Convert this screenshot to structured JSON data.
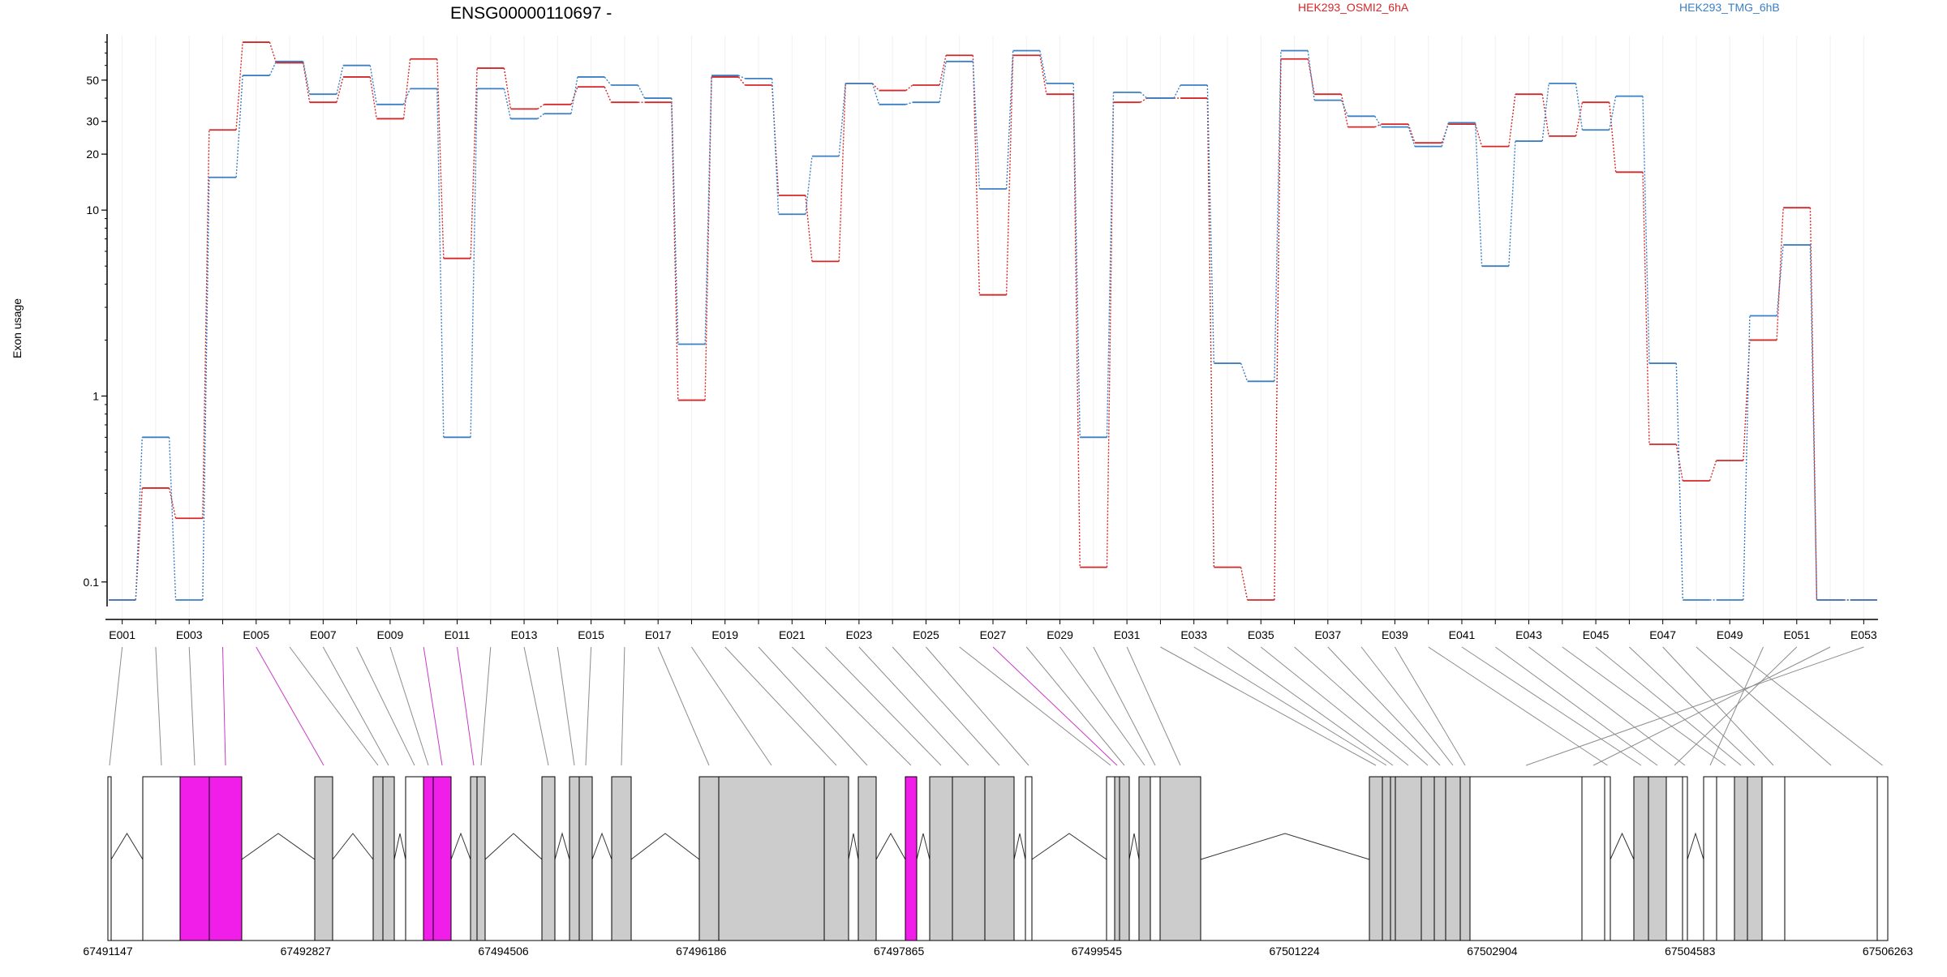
{
  "chart_data": {
    "type": "line",
    "title": "ENSG00000110697 -",
    "ylabel": "Exon usage",
    "xlabel": "",
    "yscale": "log",
    "y_tick_values": [
      0.1,
      1,
      10,
      20,
      30,
      50
    ],
    "y_tick_labels": [
      "0.1",
      "1",
      "10",
      "20",
      "30",
      "50"
    ],
    "grid": "vertical, light",
    "legend_position": "top, horizontal",
    "exons": [
      "E001",
      "E002",
      "E003",
      "E004",
      "E005",
      "E006",
      "E007",
      "E008",
      "E009",
      "E010",
      "E011",
      "E012",
      "E013",
      "E014",
      "E015",
      "E016",
      "E017",
      "E018",
      "E019",
      "E020",
      "E021",
      "E022",
      "E023",
      "E024",
      "E025",
      "E026",
      "E027",
      "E028",
      "E029",
      "E030",
      "E031",
      "E032",
      "E033",
      "E034",
      "E035",
      "E036",
      "E037",
      "E038",
      "E039",
      "E040",
      "E041",
      "E042",
      "E043",
      "E044",
      "E045",
      "E046",
      "E047",
      "E048",
      "E049",
      "E050",
      "E051",
      "E052",
      "E053"
    ],
    "exon_tick_labels": [
      "E001",
      "E003",
      "E005",
      "E007",
      "E009",
      "E011",
      "E013",
      "E015",
      "E017",
      "E019",
      "E021",
      "E023",
      "E025",
      "E027",
      "E029",
      "E031",
      "E033",
      "E035",
      "E037",
      "E039",
      "E041",
      "E043",
      "E045",
      "E047",
      "E049",
      "E051",
      "E053"
    ],
    "series": [
      {
        "name": "HEK293_OSMI2_6hA",
        "color": "#d62728",
        "values": [
          0.08,
          0.32,
          0.22,
          27,
          80,
          62,
          38,
          52,
          31,
          65,
          5.5,
          58,
          35,
          37,
          46,
          38,
          38,
          0.95,
          52,
          47,
          12,
          5.3,
          48,
          44,
          47,
          68,
          3.5,
          68,
          42,
          0.12,
          38,
          40,
          40,
          0.12,
          0.08,
          65,
          42,
          28,
          29,
          23,
          29,
          22,
          42,
          25,
          38,
          16,
          0.55,
          0.35,
          0.45,
          2.0,
          10.3,
          0.08,
          0.08
        ]
      },
      {
        "name": "HEK293_TMG_6hB",
        "color": "#3b7fc4",
        "values": [
          0.08,
          0.6,
          0.08,
          15,
          53,
          63,
          42,
          60,
          37,
          45,
          0.6,
          45,
          31,
          33,
          52,
          47,
          40,
          1.9,
          53,
          51,
          9.5,
          19.5,
          48,
          37,
          38,
          63,
          13,
          72,
          48,
          0.6,
          43,
          40,
          47,
          1.5,
          1.2,
          72,
          39,
          32,
          28,
          22,
          29.5,
          5.0,
          23.5,
          48,
          27,
          41,
          1.5,
          0.08,
          0.08,
          2.7,
          6.5,
          0.08,
          0.08
        ]
      }
    ],
    "gene_model": {
      "coordinate_labels": [
        "67491147",
        "67492827",
        "67494506",
        "67496186",
        "67497865",
        "67499545",
        "67501224",
        "67502904",
        "67504583",
        "67506263"
      ],
      "highlight_color": "#f01ee8",
      "feature_color": "#cccccc",
      "highlighted_exons": [
        "E004",
        "E005",
        "E010",
        "E011",
        "E027"
      ]
    }
  }
}
